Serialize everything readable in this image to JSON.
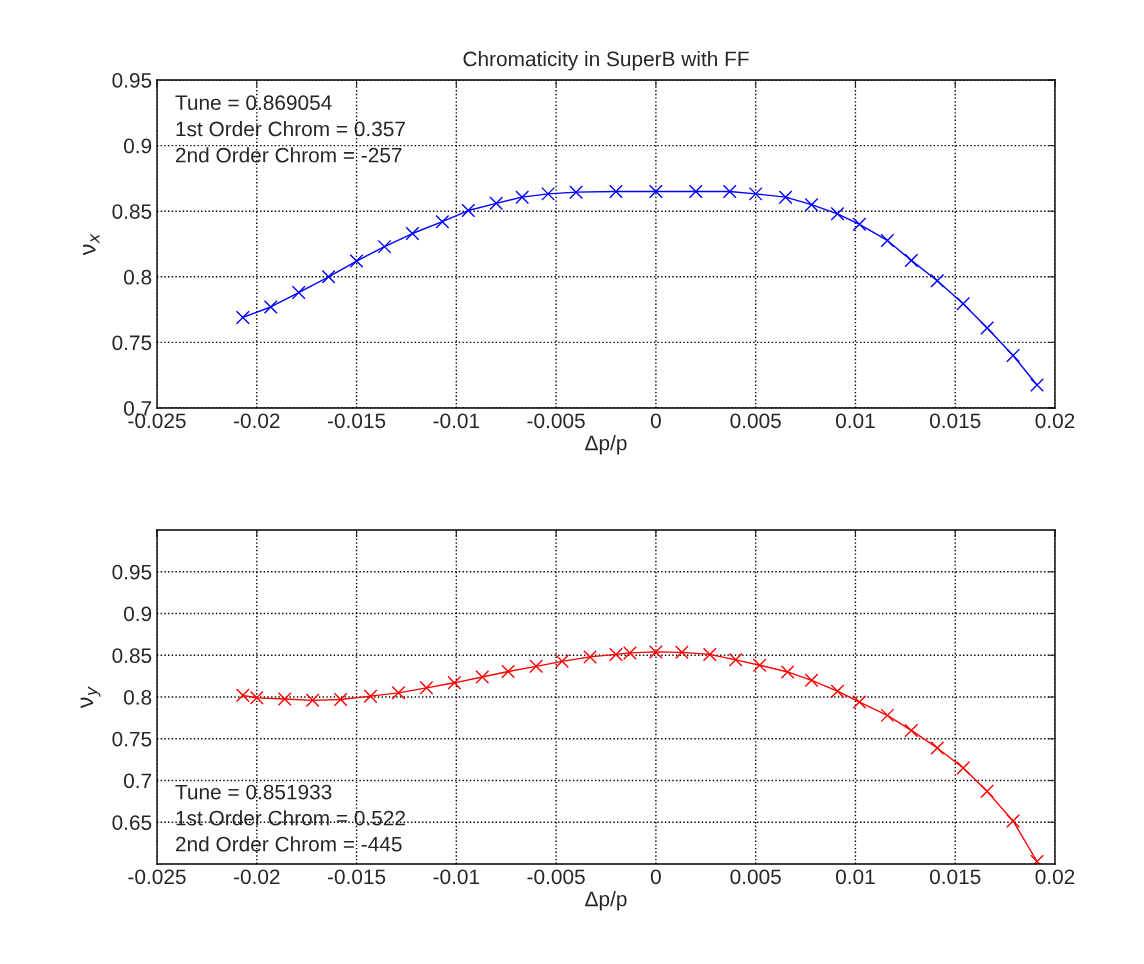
{
  "chart_data": [
    {
      "type": "line",
      "title": "Chromaticity in SuperB with FF",
      "xlabel": "Δp/p",
      "ylabel": "ν$_{x}$",
      "xlim": [
        -0.025,
        0.02
      ],
      "xticks": [
        -0.025,
        -0.02,
        -0.015,
        -0.01,
        -0.005,
        0,
        0.005,
        0.01,
        0.015,
        0.02
      ],
      "ylim": [
        0.7,
        0.95
      ],
      "yticks": [
        0.7,
        0.75,
        0.8,
        0.85,
        0.9,
        0.95
      ],
      "grid": true,
      "marker": "cross",
      "line_style": "solid",
      "annotations": [
        "Tune = 0.869054",
        "1st Order Chrom = 0.357",
        "2nd Order Chrom = -257"
      ],
      "series": [
        {
          "color": "#0000ff",
          "x": [
            -0.0207,
            -0.0193,
            -0.0179,
            -0.0164,
            -0.015,
            -0.0136,
            -0.0122,
            -0.0107,
            -0.0094,
            -0.008,
            -0.0067,
            -0.0054,
            -0.004,
            -0.002,
            0.0,
            0.002,
            0.0037,
            0.005,
            0.0065,
            0.0078,
            0.0091,
            0.0102,
            0.0116,
            0.0128,
            0.0141,
            0.0154,
            0.0166,
            0.0179,
            0.0191
          ],
          "values": [
            0.769,
            0.777,
            0.788,
            0.8,
            0.812,
            0.823,
            0.833,
            0.842,
            0.8505,
            0.856,
            0.8607,
            0.8632,
            0.8645,
            0.865,
            0.865,
            0.865,
            0.865,
            0.8632,
            0.8607,
            0.855,
            0.848,
            0.84,
            0.8277,
            0.8125,
            0.797,
            0.7795,
            0.761,
            0.74,
            0.7175
          ]
        }
      ]
    },
    {
      "type": "line",
      "xlabel": "Δp/p",
      "ylabel": "ν$_{y}$",
      "xlim": [
        -0.025,
        0.02
      ],
      "xticks": [
        -0.025,
        -0.02,
        -0.015,
        -0.01,
        -0.005,
        0,
        0.005,
        0.01,
        0.015,
        0.02
      ],
      "ylim": [
        0.6,
        1.0
      ],
      "yticks": [
        0.65,
        0.7,
        0.75,
        0.8,
        0.85,
        0.9,
        0.95
      ],
      "grid": true,
      "marker": "cross",
      "line_style": "solid",
      "annotations": [
        "Tune = 0.851933",
        "1st Order Chrom = 0.522",
        "2nd Order Chrom = -445"
      ],
      "series": [
        {
          "color": "#ff0000",
          "x": [
            -0.0207,
            -0.02,
            -0.0186,
            -0.0172,
            -0.0158,
            -0.0143,
            -0.0129,
            -0.0115,
            -0.0101,
            -0.0087,
            -0.0074,
            -0.006,
            -0.0047,
            -0.0033,
            -0.002,
            -0.0013,
            0.0,
            0.0013,
            0.0027,
            0.004,
            0.0052,
            0.0066,
            0.0078,
            0.0091,
            0.0102,
            0.0116,
            0.0128,
            0.0141,
            0.0154,
            0.0166,
            0.0179,
            0.0191
          ],
          "values": [
            0.802,
            0.799,
            0.7976,
            0.796,
            0.797,
            0.801,
            0.805,
            0.811,
            0.817,
            0.824,
            0.8305,
            0.8367,
            0.8427,
            0.848,
            0.851,
            0.8528,
            0.854,
            0.8535,
            0.851,
            0.8445,
            0.838,
            0.83,
            0.82,
            0.807,
            0.794,
            0.778,
            0.76,
            0.739,
            0.715,
            0.687,
            0.6515,
            0.603
          ]
        }
      ]
    }
  ]
}
